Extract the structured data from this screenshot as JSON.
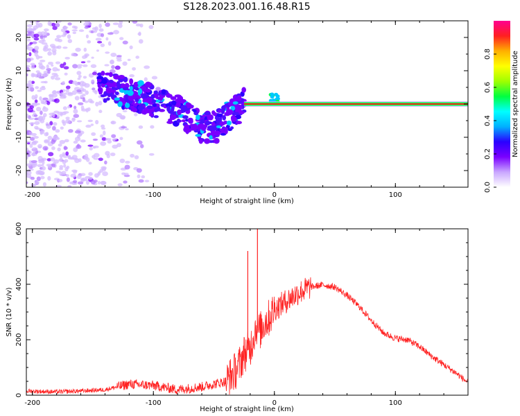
{
  "figure_title": "S128.2023.001.16.48.R15",
  "chart_data": [
    {
      "type": "heatmap",
      "xlabel": "Height of straight line (km)",
      "ylabel": "Frequency (Hz)",
      "xlim": [
        -205,
        160
      ],
      "ylim": [
        -25,
        25
      ],
      "x_ticks": [
        -200,
        -100,
        0,
        100
      ],
      "y_ticks": [
        -20,
        -10,
        0,
        10,
        20
      ],
      "colorbar": {
        "label": "Normalized spectral amplitude",
        "range": [
          0,
          1
        ],
        "ticks": [
          0.0,
          0.2,
          0.4,
          0.6,
          0.8
        ],
        "colormap": [
          "#ffffff",
          "#c9a6ff",
          "#7a00ff",
          "#2a00ff",
          "#00b0ff",
          "#00ffff",
          "#00ff40",
          "#a0ff00",
          "#ffff00",
          "#ffb000",
          "#ff2020",
          "#ff0090"
        ]
      },
      "features": [
        {
          "name": "diffuse speckle",
          "x_range": [
            -205,
            -130
          ],
          "freq_range": [
            -25,
            25
          ],
          "amplitude": 0.1
        },
        {
          "name": "descending trail",
          "points": [
            [
              -145,
              6
            ],
            [
              -120,
              3
            ],
            [
              -100,
              1
            ],
            [
              -80,
              -2
            ],
            [
              -60,
              -7
            ],
            [
              -48,
              -7
            ],
            [
              -35,
              -3
            ],
            [
              -25,
              0
            ]
          ],
          "amplitude": 0.35
        },
        {
          "name": "spike",
          "x": 0,
          "freq": 3,
          "amplitude": 0.6
        },
        {
          "name": "steady line",
          "x_range": [
            -25,
            160
          ],
          "freq": 0,
          "amplitude": 0.85
        }
      ]
    },
    {
      "type": "line",
      "xlabel": "Height of straight line (km)",
      "ylabel": "SNR (10 * v/v)",
      "xlim": [
        -205,
        160
      ],
      "ylim": [
        0,
        600
      ],
      "x_ticks": [
        -200,
        -100,
        0,
        100
      ],
      "y_ticks": [
        0,
        200,
        400,
        600
      ],
      "series": [
        {
          "color": "#ff2020",
          "x": [
            -205,
            -180,
            -160,
            -140,
            -120,
            -100,
            -80,
            -60,
            -40,
            -30,
            -25,
            -20,
            -15,
            -12,
            -8,
            -5,
            0,
            10,
            20,
            30,
            40,
            50,
            60,
            70,
            80,
            90,
            100,
            110,
            120,
            130,
            140,
            150,
            160
          ],
          "values": [
            15,
            12,
            15,
            20,
            40,
            35,
            20,
            30,
            50,
            100,
            150,
            170,
            250,
            230,
            265,
            275,
            310,
            340,
            370,
            390,
            398,
            390,
            360,
            320,
            270,
            225,
            205,
            200,
            175,
            140,
            110,
            80,
            45
          ],
          "spikes": [
            [
              -22,
              520
            ],
            [
              -14,
              600
            ]
          ]
        }
      ]
    }
  ]
}
